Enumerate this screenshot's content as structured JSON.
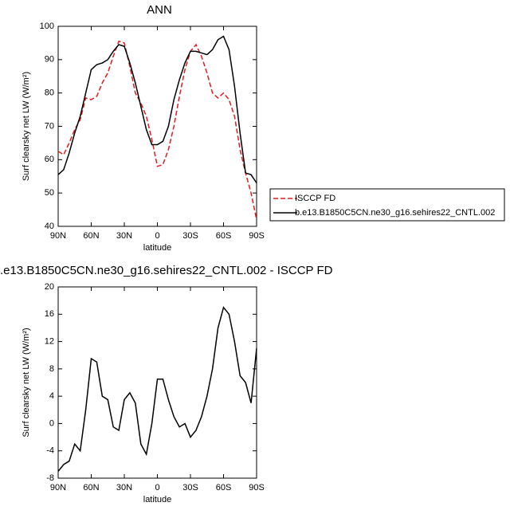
{
  "chart_data": [
    {
      "type": "line",
      "title": "ANN",
      "x_label": "latitude",
      "y_label": "Surf clearsky net LW (W/m²)",
      "x": [
        90,
        85,
        80,
        75,
        70,
        65,
        60,
        55,
        50,
        45,
        40,
        35,
        30,
        25,
        20,
        15,
        10,
        5,
        0,
        -5,
        -10,
        -15,
        -20,
        -25,
        -30,
        -35,
        -40,
        -45,
        -50,
        -55,
        -60,
        -65,
        -70,
        -75,
        -80,
        -85,
        -90
      ],
      "xlim": [
        90,
        -90
      ],
      "xticks": [
        {
          "value": 90,
          "label": "90N"
        },
        {
          "value": 60,
          "label": "60N"
        },
        {
          "value": 30,
          "label": "30N"
        },
        0,
        {
          "value": -30,
          "label": "30S"
        },
        {
          "value": -60,
          "label": "60S"
        },
        {
          "value": -90,
          "label": "90S"
        }
      ],
      "ylim": [
        40,
        100
      ],
      "yticks": [
        40,
        50,
        60,
        70,
        80,
        90,
        100
      ],
      "series": [
        {
          "name": "ISCCP FD",
          "color": "#e41a1c",
          "dash": true,
          "values": [
            62.5,
            61.5,
            65,
            69,
            72,
            78.5,
            78,
            79,
            83,
            86,
            91,
            95.5,
            95,
            88,
            80,
            77,
            73,
            66,
            58,
            58.5,
            63,
            70,
            79,
            87,
            92.5,
            94.5,
            91,
            86,
            80,
            78.5,
            80,
            78,
            73,
            63,
            56,
            50,
            42
          ]
        },
        {
          "name": "b.e13.B1850C5CN.ne30_g16.sehires22_CNTL.002",
          "color": "#000000",
          "dash": false,
          "values": [
            55.5,
            57,
            62,
            68,
            73,
            80,
            87,
            88.5,
            89,
            90,
            92.5,
            94.5,
            94,
            89,
            83,
            76,
            69,
            64.5,
            64.5,
            65.5,
            70,
            78,
            84,
            89,
            92.5,
            92.5,
            92,
            91.5,
            93,
            96,
            97,
            93,
            82,
            68,
            56,
            55.5,
            53
          ]
        }
      ]
    },
    {
      "type": "line",
      "title": ".e13.B1850C5CN.ne30_g16.sehires22_CNTL.002 - ISCCP FD",
      "x_label": "latitude",
      "y_label": "Surf clearsky net LW (W/m²)",
      "x": [
        90,
        85,
        80,
        75,
        70,
        65,
        60,
        55,
        50,
        45,
        40,
        35,
        30,
        25,
        20,
        15,
        10,
        5,
        0,
        -5,
        -10,
        -15,
        -20,
        -25,
        -30,
        -35,
        -40,
        -45,
        -50,
        -55,
        -60,
        -65,
        -70,
        -75,
        -80,
        -85,
        -90
      ],
      "xlim": [
        90,
        -90
      ],
      "xticks": [
        {
          "value": 90,
          "label": "90N"
        },
        {
          "value": 60,
          "label": "60N"
        },
        {
          "value": 30,
          "label": "30N"
        },
        0,
        {
          "value": -30,
          "label": "30S"
        },
        {
          "value": -60,
          "label": "60S"
        },
        {
          "value": -90,
          "label": "90S"
        }
      ],
      "ylim": [
        -8,
        20
      ],
      "yticks": [
        -8,
        -4,
        0,
        4,
        8,
        12,
        16,
        20
      ],
      "series": [
        {
          "color": "#000000",
          "dash": false,
          "values": [
            -7,
            -6,
            -5.5,
            -3,
            -4,
            2,
            9.5,
            9,
            4,
            3.5,
            -0.5,
            -1,
            3.5,
            4.5,
            3,
            -3,
            -4.5,
            0,
            6.5,
            6.5,
            3.5,
            1,
            -0.5,
            0,
            -2,
            -1,
            1,
            4,
            8,
            14,
            17,
            16,
            12,
            7,
            6,
            3,
            11
          ]
        }
      ]
    }
  ]
}
